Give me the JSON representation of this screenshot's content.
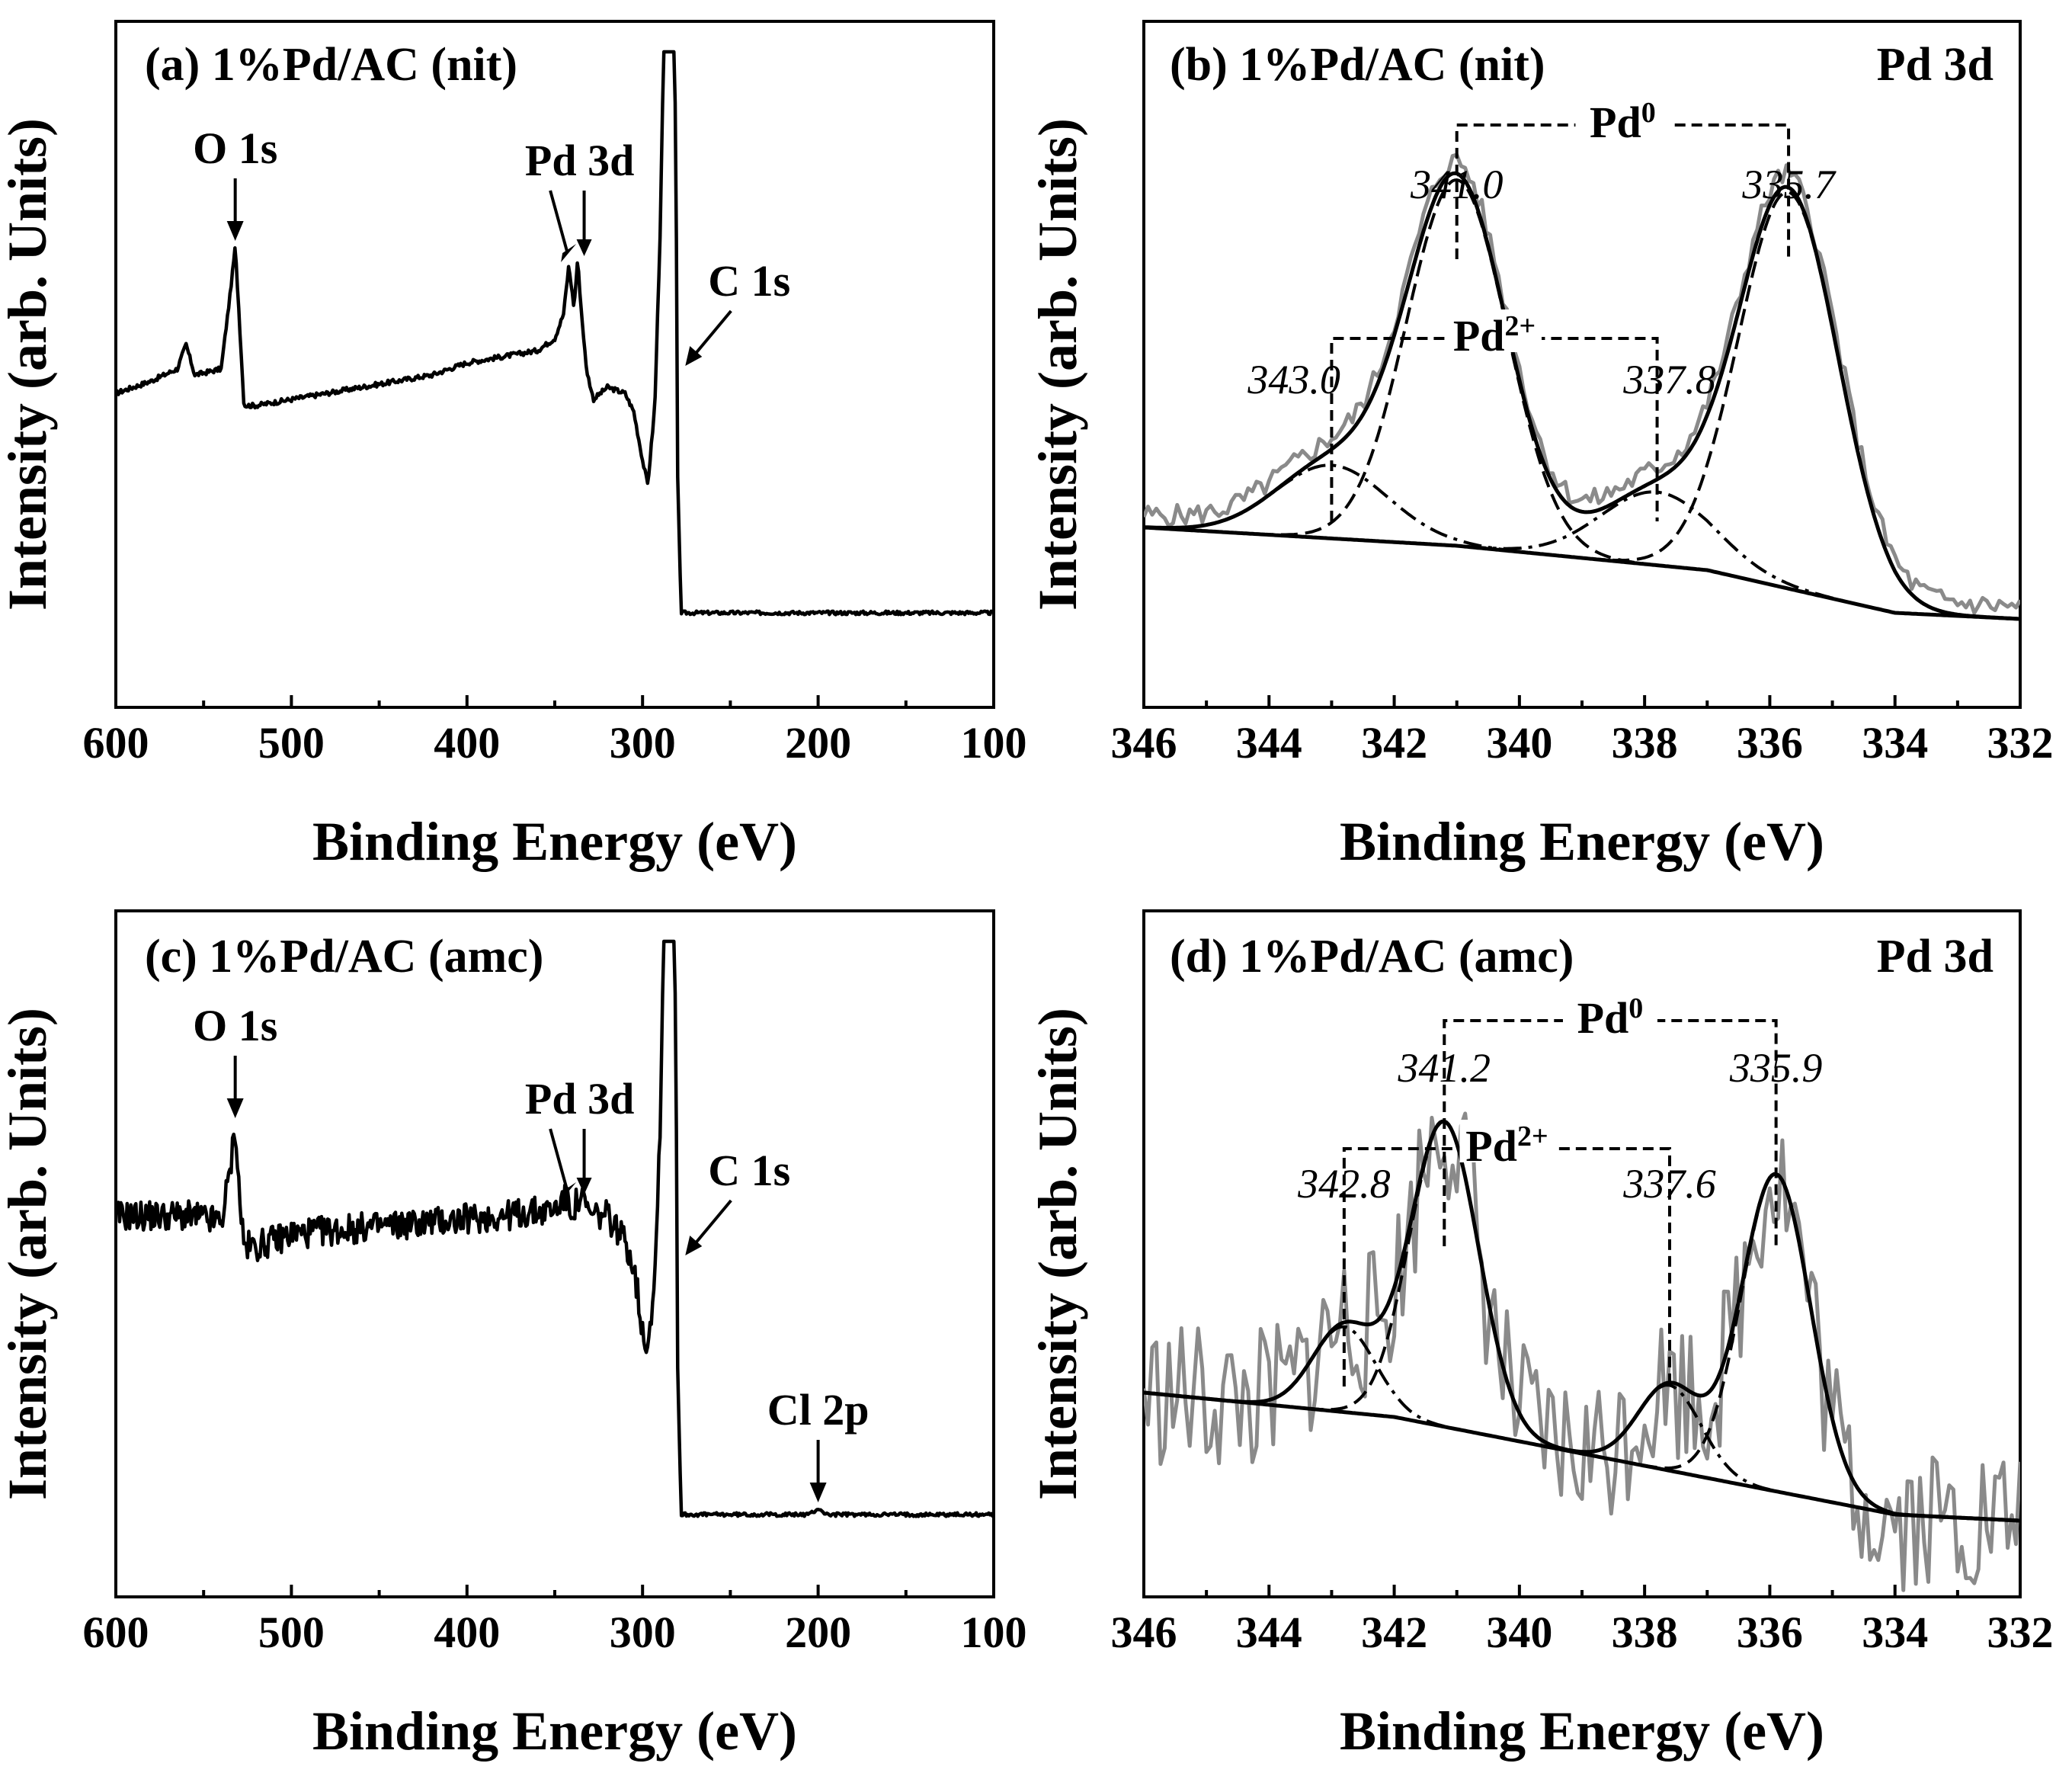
{
  "chart_data": [
    {
      "id": "a",
      "type": "line",
      "title": "(a) 1%Pd/AC (nit)",
      "xlabel": "Binding Energy (eV)",
      "ylabel": "Intensity (arb. Units)",
      "xlim": [
        600,
        100
      ],
      "ylim": [
        0,
        100
      ],
      "xticks": [
        "600",
        "500",
        "400",
        "300",
        "200",
        "100"
      ],
      "xtick_values": [
        600,
        500,
        400,
        300,
        200,
        100
      ],
      "grid": false,
      "series": [
        {
          "style": "survey",
          "x": [
            600,
            580,
            565,
            560,
            555,
            540,
            535,
            532,
            530,
            527,
            520,
            500,
            480,
            460,
            440,
            420,
            400,
            380,
            360,
            350,
            345,
            342,
            339,
            337,
            335,
            332,
            328,
            320,
            310,
            305,
            300,
            297,
            293,
            290,
            288,
            286,
            285,
            284,
            283,
            282,
            281,
            280,
            278,
            270,
            250,
            200,
            150,
            100
          ],
          "y": [
            44,
            46,
            48,
            52,
            47,
            48,
            60,
            68,
            58,
            42,
            42,
            43,
            44,
            45,
            46,
            47,
            49,
            50,
            51,
            53,
            57,
            65,
            58,
            66,
            58,
            48,
            43,
            45,
            44,
            41,
            33,
            29,
            42,
            70,
            100,
            100,
            100,
            100,
            100,
            100,
            85,
            30,
            8,
            8,
            8,
            8,
            8,
            8
          ]
        }
      ],
      "annotations": [
        {
          "text": "O 1s",
          "x": 532,
          "y": 68
        },
        {
          "text": "Pd 3d",
          "x": 338,
          "y": 66
        },
        {
          "text": "C 1s",
          "x": 280,
          "y": 55
        }
      ]
    },
    {
      "id": "b",
      "type": "line",
      "title": "(b) 1%Pd/AC (nit)",
      "region_label": "Pd 3d",
      "xlabel": "Binding Energy (eV)",
      "ylabel": "Intensity (arb. Units)",
      "xlim": [
        346,
        332
      ],
      "ylim": [
        0,
        100
      ],
      "xticks": [
        "346",
        "344",
        "342",
        "340",
        "338",
        "336",
        "334",
        "332"
      ],
      "xtick_values": [
        346,
        344,
        342,
        340,
        338,
        336,
        334,
        332
      ],
      "grid": false,
      "background": {
        "x": [
          346,
          341,
          337,
          334,
          332
        ],
        "y": [
          22,
          19,
          15,
          8,
          7
        ]
      },
      "peaks": [
        {
          "center": 341.0,
          "height": 60,
          "width": 0.8,
          "style": "dash",
          "label": "341.0",
          "group": "Pd0"
        },
        {
          "center": 335.7,
          "height": 65,
          "width": 0.8,
          "style": "dash",
          "label": "335.7",
          "group": "Pd0"
        },
        {
          "center": 343.0,
          "height": 12,
          "width": 0.9,
          "style": "dashdot",
          "label": "343.0",
          "group": "Pd2+"
        },
        {
          "center": 337.8,
          "height": 12,
          "width": 0.9,
          "style": "dashdot",
          "label": "337.8",
          "group": "Pd2+"
        }
      ],
      "noise": 3,
      "groups": [
        {
          "label": "Pd",
          "sup": "0",
          "x1": 341.0,
          "x2": 335.7,
          "y": 88,
          "line_end": 66
        },
        {
          "label": "Pd",
          "sup": "2+",
          "x1": 343.0,
          "x2": 337.8,
          "y": 53,
          "line_end": 23
        }
      ],
      "peak_label_positions": [
        {
          "text": "341.0",
          "x": 341.0,
          "y": 76
        },
        {
          "text": "335.7",
          "x": 335.7,
          "y": 76
        },
        {
          "text": "343.0",
          "x": 343.6,
          "y": 44
        },
        {
          "text": "337.8",
          "x": 337.6,
          "y": 44
        }
      ]
    },
    {
      "id": "c",
      "type": "line",
      "title": "(c) 1%Pd/AC (amc)",
      "xlabel": "Binding Energy (eV)",
      "ylabel": "Intensity (arb. Units)",
      "xlim": [
        600,
        100
      ],
      "ylim": [
        0,
        100
      ],
      "xticks": [
        "600",
        "500",
        "400",
        "300",
        "200",
        "100"
      ],
      "xtick_values": [
        600,
        500,
        400,
        300,
        200,
        100
      ],
      "grid": false,
      "series": [
        {
          "style": "survey",
          "noise": 2.5,
          "x": [
            600,
            560,
            540,
            535,
            532,
            530,
            527,
            520,
            500,
            460,
            420,
            380,
            350,
            345,
            340,
            335,
            330,
            320,
            310,
            305,
            300,
            297,
            293,
            290,
            288,
            286,
            285,
            284,
            283,
            282,
            281,
            280,
            278,
            270,
            250,
            205,
            200,
            195,
            150,
            100
          ],
          "y": [
            55,
            55,
            54,
            62,
            70,
            60,
            50,
            50,
            52,
            53,
            54,
            55,
            56,
            58,
            56,
            58,
            55,
            55,
            51,
            47,
            36,
            34,
            45,
            70,
            100,
            100,
            100,
            100,
            100,
            100,
            85,
            30,
            6,
            6,
            6,
            6,
            7,
            6,
            6,
            6
          ]
        }
      ],
      "annotations": [
        {
          "text": "O 1s",
          "x": 532,
          "y": 70
        },
        {
          "text": "Pd 3d",
          "x": 338,
          "y": 58
        },
        {
          "text": "C 1s",
          "x": 280,
          "y": 55
        },
        {
          "text": "Cl 2p",
          "x": 200,
          "y": 7
        }
      ]
    },
    {
      "id": "d",
      "type": "line",
      "title": "(d) 1%Pd/AC (amc)",
      "region_label": "Pd 3d",
      "xlabel": "Binding Energy (eV)",
      "ylabel": "Intensity (arb. Units)",
      "xlim": [
        346,
        332
      ],
      "ylim": [
        0,
        100
      ],
      "xticks": [
        "346",
        "344",
        "342",
        "340",
        "338",
        "336",
        "334",
        "332"
      ],
      "xtick_values": [
        346,
        344,
        342,
        340,
        338,
        336,
        334,
        332
      ],
      "grid": false,
      "background": {
        "x": [
          346,
          342,
          339,
          337,
          336,
          335,
          334,
          332
        ],
        "y": [
          26,
          22,
          16,
          12,
          10,
          8,
          6,
          5
        ]
      },
      "peaks": [
        {
          "center": 341.2,
          "height": 50,
          "width": 0.55,
          "style": "dash",
          "label": "341.2",
          "group": "Pd0"
        },
        {
          "center": 335.9,
          "height": 52,
          "width": 0.55,
          "style": "dash",
          "label": "335.9",
          "group": "Pd0"
        },
        {
          "center": 342.8,
          "height": 14,
          "width": 0.5,
          "style": "dashdot",
          "label": "342.8",
          "group": "Pd2+"
        },
        {
          "center": 337.6,
          "height": 14,
          "width": 0.5,
          "style": "dashdot",
          "label": "337.6",
          "group": "Pd2+"
        }
      ],
      "noise": 14,
      "groups": [
        {
          "label": "Pd",
          "sup": "0",
          "x1": 341.2,
          "x2": 335.9,
          "y": 87,
          "line_end": 50
        },
        {
          "label": "Pd",
          "sup": "2+",
          "x1": 342.8,
          "x2": 337.6,
          "y": 66,
          "line_end": 27
        }
      ],
      "peak_label_positions": [
        {
          "text": "341.2",
          "x": 341.2,
          "y": 77
        },
        {
          "text": "335.9",
          "x": 335.9,
          "y": 77
        },
        {
          "text": "342.8",
          "x": 342.8,
          "y": 58
        },
        {
          "text": "337.6",
          "x": 337.6,
          "y": 58
        }
      ]
    }
  ]
}
